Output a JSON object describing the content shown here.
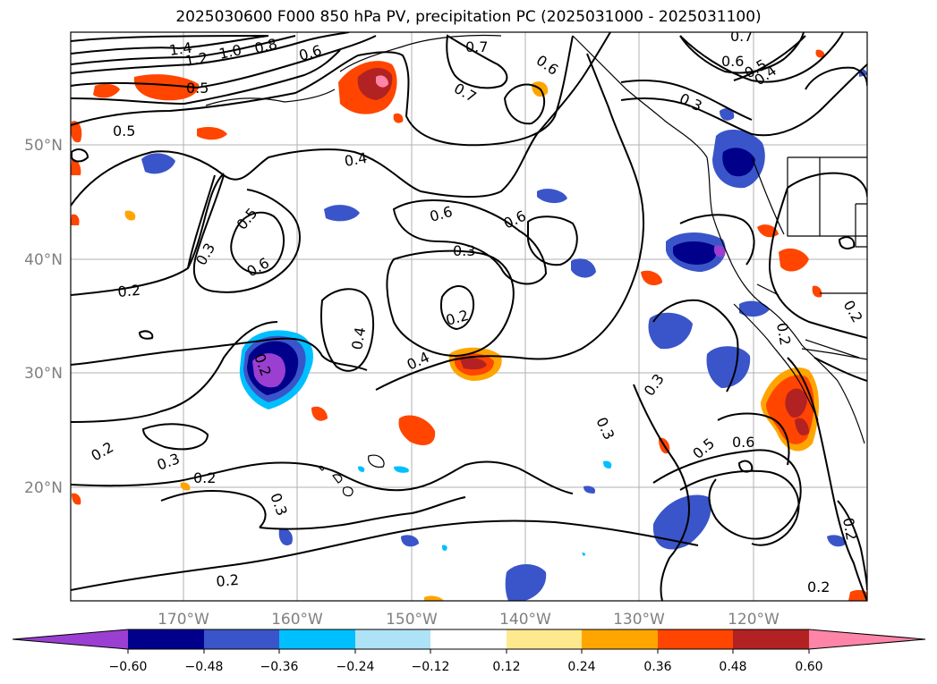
{
  "title": "2025030600 F000 850 hPa PV, precipitation PC (2025031000 - 2025031100)",
  "lat_labels": [
    "50°N",
    "40°N",
    "30°N",
    "20°N"
  ],
  "lon_labels": [
    "170°W",
    "160°W",
    "150°W",
    "140°W",
    "130°W",
    "120°W"
  ],
  "contour_labels": [
    "1.4",
    "1.2",
    "1.0",
    "0.8",
    "0.6",
    "0.5",
    "0.5",
    "0.7",
    "0.6",
    "0.7",
    "0.6",
    "0.5",
    "0.4",
    "0.7",
    "0.3",
    "0.4",
    "0.6",
    "0.6",
    "0.5",
    "0.3",
    "0.3",
    "0.6",
    "0.2",
    "0.2",
    "0.4",
    "0.4",
    "0.2",
    "0.3",
    "0.3",
    "0.2",
    "0.3",
    "0.2",
    "0.3",
    "0.2",
    "0.5",
    "0.6",
    "0.2",
    "0.2",
    "0.2",
    "0.2"
  ],
  "colorbar": {
    "colors": [
      "#9a3fd1",
      "#00008b",
      "#3a55c9",
      "#00bfff",
      "#aee2f7",
      "#ffffff",
      "#ffe98f",
      "#ffa500",
      "#ff4500",
      "#b22222",
      "#ff85a8"
    ],
    "ticks": [
      "−0.60",
      "−0.48",
      "−0.36",
      "−0.24",
      "−0.12",
      "0.12",
      "0.24",
      "0.36",
      "0.48",
      "0.60"
    ]
  }
}
